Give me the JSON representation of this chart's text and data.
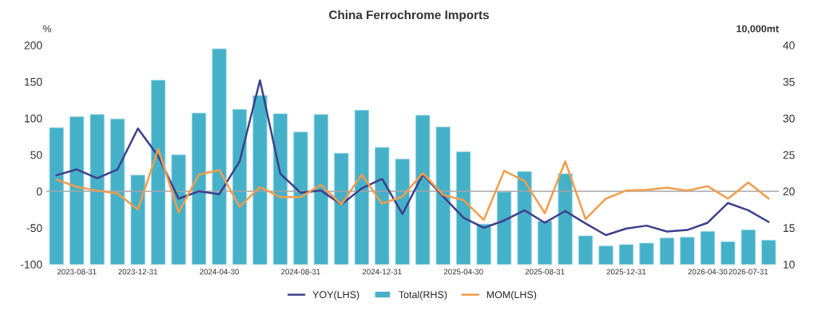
{
  "chart_data": {
    "type": "bar",
    "title": "China Ferrochrome Imports",
    "ylabel": "%",
    "y2label": "10,000mt",
    "categories": [
      null,
      "2023-08-31",
      null,
      null,
      "2023-12-31",
      null,
      null,
      null,
      "2024-04-30",
      null,
      null,
      null,
      "2024-08-31",
      null,
      null,
      null,
      "2024-12-31",
      null,
      null,
      null,
      "2025-04-30",
      null,
      null,
      null,
      "2025-08-31",
      null,
      null,
      null,
      "2025-12-31",
      null,
      null,
      null,
      "2026-04-30",
      null,
      "2026-07-31",
      null
    ],
    "series": [
      {
        "name": "YOY(LHS)",
        "type": "line",
        "axis": "y",
        "color": "#3e3f8c",
        "values": [
          22,
          30,
          18,
          30,
          86,
          48,
          -10,
          0,
          -4,
          41,
          152,
          24,
          -2,
          1,
          -18,
          4,
          17,
          -31,
          23,
          -7,
          -36,
          -50,
          -40,
          -26,
          -43,
          -27,
          -44,
          -60,
          -51,
          -47,
          -55,
          -53,
          -43,
          -16,
          -26,
          -42
        ]
      },
      {
        "name": "Total(RHS)",
        "axis": "y2",
        "color": "#45b1c9",
        "values": [
          28.7,
          30.2,
          30.5,
          29.9,
          22.2,
          35.2,
          25.0,
          30.7,
          39.5,
          31.2,
          33.1,
          30.6,
          28.1,
          30.5,
          25.2,
          31.1,
          26.0,
          24.4,
          30.4,
          28.8,
          25.4,
          15.5,
          19.9,
          22.7,
          15.9,
          22.4,
          13.9,
          12.5,
          12.7,
          12.9,
          13.6,
          13.7,
          14.5,
          13.1,
          14.7,
          13.3
        ]
      },
      {
        "name": "MOM(LHS)",
        "type": "line",
        "axis": "y",
        "color": "#f39c4a",
        "values": [
          16,
          6,
          1,
          -3,
          -25,
          58,
          -29,
          23,
          29,
          -21,
          6,
          -8,
          -8,
          9,
          -18,
          23,
          -17,
          -7,
          25,
          -5,
          -12,
          -39,
          28,
          14,
          -30,
          41,
          -38,
          -10,
          1,
          2,
          5,
          1,
          7,
          -10,
          12,
          -10
        ]
      }
    ],
    "ylim": [
      -100,
      200
    ],
    "yticks": [
      -100,
      -50,
      0,
      50,
      100,
      150,
      200
    ],
    "y2lim": [
      10,
      40
    ],
    "y2ticks": [
      10,
      15,
      20,
      25,
      30,
      35,
      40
    ],
    "ref_lines": [
      {
        "axis": "y",
        "value": 0,
        "color": "#a6a6a6"
      }
    ],
    "legend": "bottom",
    "grid": false
  }
}
